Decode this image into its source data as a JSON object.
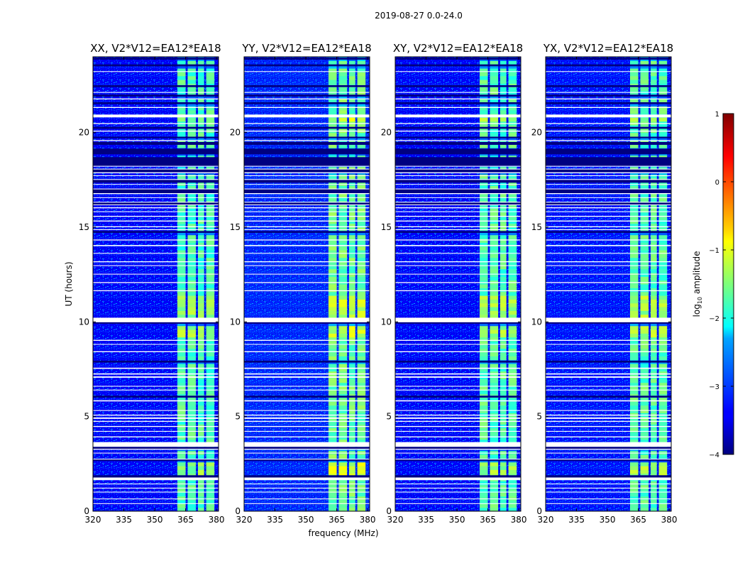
{
  "chart_data": {
    "type": "heatmap",
    "suptitle": "2019-08-27 0.0-24.0",
    "xlabel": "frequency (MHz)",
    "ylabel": "UT (hours)",
    "xlim": [
      320,
      381
    ],
    "ylim": [
      0,
      24
    ],
    "xticks": [
      320,
      335,
      350,
      365,
      380
    ],
    "yticks": [
      0,
      5,
      10,
      15,
      20
    ],
    "colormap": "jet",
    "colorbar": {
      "label_main": "log",
      "label_sub": "10",
      "label_tail": " amplitude",
      "range": [
        -4,
        1
      ],
      "ticks": [
        {
          "value": -4,
          "label": "−4"
        },
        {
          "value": -3,
          "label": "−3"
        },
        {
          "value": -2,
          "label": "−2"
        },
        {
          "value": -1,
          "label": "−1"
        },
        {
          "value": 0,
          "label": "0"
        },
        {
          "value": 1,
          "label": "1"
        }
      ]
    },
    "rfi_band_mhz": [
      360,
      380
    ],
    "rfi_subchannels_mhz": [
      [
        361,
        365
      ],
      [
        366,
        370
      ],
      [
        371,
        374
      ],
      [
        375,
        379
      ]
    ],
    "panels": [
      {
        "title": "XX, V2*V12=EA12*EA18",
        "band_strength": 0.82,
        "background_level": -3.4
      },
      {
        "title": "YY, V2*V12=EA12*EA18",
        "band_strength": 1.0,
        "background_level": -3.2
      },
      {
        "title": "XY, V2*V12=EA12*EA18",
        "band_strength": 0.85,
        "background_level": -3.4
      },
      {
        "title": "YX, V2*V12=EA12*EA18",
        "band_strength": 0.88,
        "background_level": -3.3
      }
    ],
    "flagged_hours": [
      [
        0.38,
        0.42
      ],
      [
        0.63,
        0.67
      ],
      [
        0.99,
        1.03
      ],
      [
        1.2,
        1.24
      ],
      [
        1.42,
        1.46
      ],
      [
        1.64,
        1.78
      ],
      [
        2.73,
        2.77
      ],
      [
        3.05,
        3.09
      ],
      [
        3.25,
        3.3
      ],
      [
        3.4,
        3.65
      ],
      [
        3.9,
        3.95
      ],
      [
        4.2,
        4.24
      ],
      [
        4.45,
        4.5
      ],
      [
        4.72,
        4.77
      ],
      [
        4.88,
        4.95
      ],
      [
        5.05,
        5.1
      ],
      [
        5.3,
        5.34
      ],
      [
        5.8,
        5.86
      ],
      [
        6.38,
        6.42
      ],
      [
        6.58,
        6.62
      ],
      [
        7.05,
        7.12
      ],
      [
        7.22,
        7.28
      ],
      [
        7.52,
        7.58
      ],
      [
        8.4,
        8.45
      ],
      [
        8.8,
        8.83
      ],
      [
        9.0,
        9.05
      ],
      [
        9.98,
        10.22
      ],
      [
        11.62,
        11.67
      ],
      [
        12.05,
        12.1
      ],
      [
        12.5,
        12.54
      ],
      [
        12.95,
        12.99
      ],
      [
        13.15,
        13.2
      ],
      [
        13.6,
        13.64
      ],
      [
        14.0,
        14.06
      ],
      [
        14.3,
        14.35
      ],
      [
        14.85,
        14.89
      ],
      [
        15.0,
        15.05
      ],
      [
        15.3,
        15.35
      ],
      [
        15.55,
        15.6
      ],
      [
        15.8,
        15.84
      ],
      [
        16.0,
        16.05
      ],
      [
        16.17,
        16.2
      ],
      [
        16.3,
        16.34
      ],
      [
        16.55,
        16.58
      ],
      [
        16.75,
        16.8
      ],
      [
        17.0,
        17.04
      ],
      [
        17.25,
        17.28
      ],
      [
        17.5,
        17.54
      ],
      [
        17.7,
        17.74
      ],
      [
        17.85,
        17.9
      ],
      [
        18.05,
        18.09
      ],
      [
        18.2,
        18.24
      ],
      [
        19.55,
        19.6
      ],
      [
        20.05,
        20.1
      ],
      [
        20.45,
        20.5
      ],
      [
        20.8,
        20.95
      ],
      [
        21.3,
        21.35
      ],
      [
        21.75,
        21.8
      ],
      [
        22.1,
        22.14
      ],
      [
        23.2,
        23.24
      ]
    ],
    "dark_hours": [
      [
        1.78,
        1.9
      ],
      [
        2.65,
        2.73
      ],
      [
        3.3,
        3.4
      ],
      [
        6.0,
        6.1
      ],
      [
        7.85,
        7.95
      ],
      [
        9.9,
        9.98
      ],
      [
        14.7,
        14.8
      ],
      [
        16.2,
        16.3
      ],
      [
        16.8,
        17.0
      ],
      [
        17.35,
        17.5
      ],
      [
        17.9,
        18.05
      ],
      [
        18.24,
        18.7
      ],
      [
        18.85,
        19.15
      ],
      [
        19.35,
        19.5
      ],
      [
        19.7,
        19.78
      ],
      [
        20.2,
        20.3
      ],
      [
        21.5,
        21.6
      ],
      [
        21.9,
        22.0
      ],
      [
        22.4,
        22.5
      ],
      [
        23.5,
        23.6
      ],
      [
        23.85,
        23.95
      ]
    ],
    "hot_hours": [
      [
        1.9,
        2.7
      ],
      [
        9.3,
        9.9
      ],
      [
        10.3,
        11.5
      ],
      [
        19.95,
        20.05
      ],
      [
        20.7,
        20.8
      ]
    ]
  }
}
